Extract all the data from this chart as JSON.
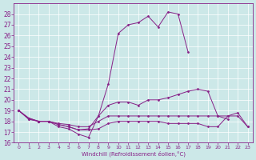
{
  "xlabel": "Windchill (Refroidissement éolien,°C)",
  "bg_color": "#cce8e8",
  "line_color": "#882288",
  "grid_color": "#ffffff",
  "xlim": [
    -0.5,
    23.5
  ],
  "ylim": [
    16,
    29
  ],
  "yticks": [
    16,
    17,
    18,
    19,
    20,
    21,
    22,
    23,
    24,
    25,
    26,
    27,
    28
  ],
  "xticks": [
    0,
    1,
    2,
    3,
    4,
    5,
    6,
    7,
    8,
    9,
    10,
    11,
    12,
    13,
    14,
    15,
    16,
    17,
    18,
    19,
    20,
    21,
    22,
    23
  ],
  "hours": [
    0,
    1,
    2,
    3,
    4,
    5,
    6,
    7,
    8,
    9,
    10,
    11,
    12,
    13,
    14,
    15,
    16,
    17,
    18,
    19,
    20,
    21,
    22,
    23
  ],
  "line1": [
    19.0,
    18.3,
    18.0,
    18.0,
    17.5,
    17.3,
    16.8,
    16.5,
    18.5,
    21.5,
    26.2,
    27.0,
    27.2,
    27.8,
    26.8,
    28.2,
    28.0,
    24.5,
    null,
    null,
    null,
    null,
    null,
    null
  ],
  "line2": [
    19.0,
    18.3,
    18.0,
    18.0,
    17.7,
    17.5,
    17.2,
    17.3,
    18.5,
    19.5,
    19.8,
    19.8,
    19.5,
    20.0,
    20.0,
    20.2,
    20.5,
    20.8,
    21.0,
    20.8,
    18.5,
    18.2,
    null,
    null
  ],
  "line3": [
    19.0,
    18.2,
    18.0,
    18.0,
    17.8,
    17.7,
    17.5,
    17.5,
    18.0,
    18.5,
    18.5,
    18.5,
    18.5,
    18.5,
    18.5,
    18.5,
    18.5,
    18.5,
    18.5,
    18.5,
    18.5,
    18.5,
    18.5,
    17.5
  ],
  "line4": [
    19.0,
    18.2,
    18.0,
    18.0,
    17.7,
    17.5,
    17.2,
    17.2,
    17.3,
    17.8,
    18.0,
    18.0,
    18.0,
    18.0,
    18.0,
    17.8,
    17.8,
    17.8,
    17.8,
    17.5,
    17.5,
    18.5,
    18.8,
    17.5
  ]
}
